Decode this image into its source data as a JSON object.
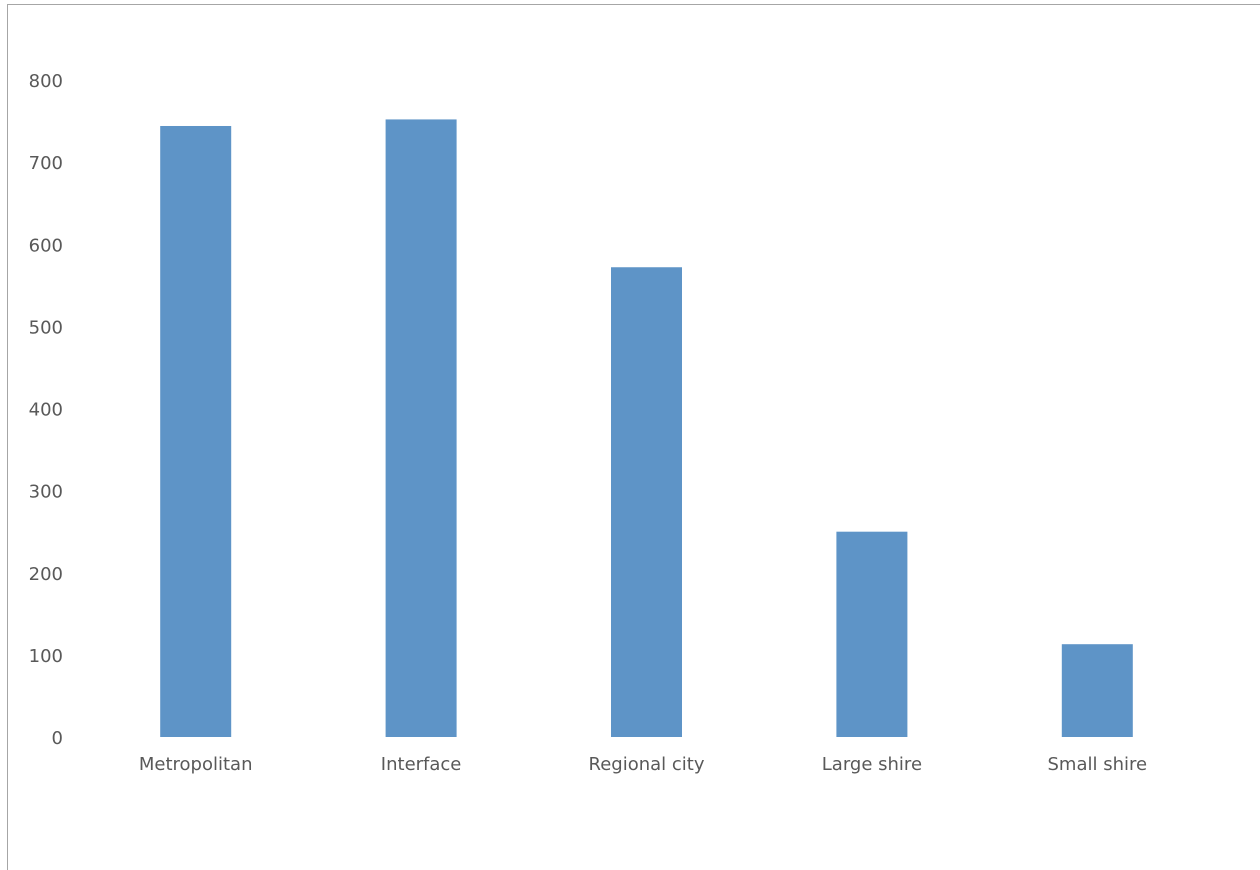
{
  "chart_data": {
    "type": "bar",
    "title": "",
    "xlabel": "",
    "ylabel": "",
    "categories": [
      "Metropolitan",
      "Interface",
      "Regional city",
      "Large shire",
      "Small shire"
    ],
    "values": [
      744,
      752,
      572,
      250,
      113
    ],
    "ylim": [
      0,
      800
    ],
    "yticks": [
      0,
      100,
      200,
      300,
      400,
      500,
      600,
      700,
      800
    ],
    "grid": false,
    "legend": "none",
    "bar_color": "#5e94c7",
    "axis_text_color": "#595959",
    "frame_color": "#a6a6a6"
  }
}
